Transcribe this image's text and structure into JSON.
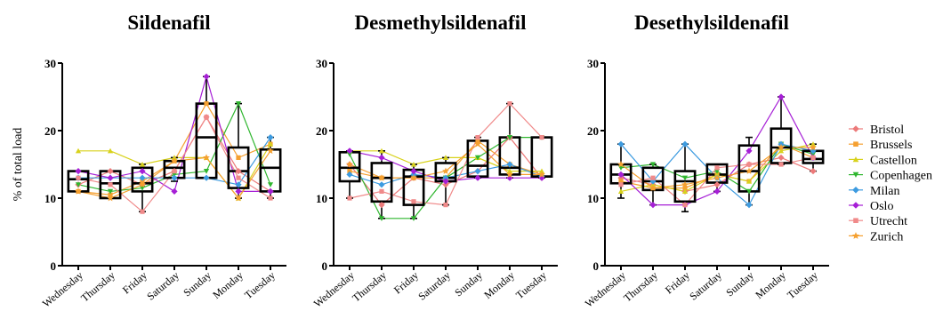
{
  "ylabel": "% of total load",
  "legend": [
    {
      "name": "Bristol",
      "color": "#ec7a7a",
      "marker": "diamond"
    },
    {
      "name": "Brussels",
      "color": "#f5a030",
      "marker": "square"
    },
    {
      "name": "Castellon",
      "color": "#d8d21c",
      "marker": "triangle"
    },
    {
      "name": "Copenhagen",
      "color": "#2fb62f",
      "marker": "triangle-down"
    },
    {
      "name": "Milan",
      "color": "#3d9be0",
      "marker": "diamond"
    },
    {
      "name": "Oslo",
      "color": "#a61fd6",
      "marker": "diamond"
    },
    {
      "name": "Utrecht",
      "color": "#f08a8a",
      "marker": "square"
    },
    {
      "name": "Zurich",
      "color": "#f5a030",
      "marker": "star"
    }
  ],
  "chart_data": [
    {
      "type": "box",
      "title": "Sildenafil",
      "categories": [
        "Wednesday",
        "Thursday",
        "Friday",
        "Saturday",
        "Sunday",
        "Monday",
        "Tuesday"
      ],
      "ylim": [
        0,
        30
      ],
      "yticks": [
        0,
        10,
        20,
        30
      ],
      "ylabel": "% of total load",
      "boxes": [
        {
          "min": 11,
          "q1": 11,
          "median": 12.8,
          "q3": 14,
          "max": 14
        },
        {
          "min": 10,
          "q1": 10,
          "median": 12.2,
          "q3": 14,
          "max": 14
        },
        {
          "min": 8,
          "q1": 11,
          "median": 12.2,
          "q3": 14.5,
          "max": 15
        },
        {
          "min": 12.5,
          "q1": 13,
          "median": 14.5,
          "q3": 15.5,
          "max": 16
        },
        {
          "min": 13,
          "q1": 13,
          "median": 19,
          "q3": 24,
          "max": 28
        },
        {
          "min": 10,
          "q1": 11.5,
          "median": 14,
          "q3": 17.5,
          "max": 24
        },
        {
          "min": 10,
          "q1": 11,
          "median": 14.5,
          "q3": 17.2,
          "max": 19
        }
      ],
      "series": [
        {
          "name": "Bristol",
          "values": [
            12,
            14,
            12,
            14,
            22,
            14,
            11
          ]
        },
        {
          "name": "Brussels",
          "values": [
            11,
            10.5,
            12.5,
            15.5,
            24,
            16,
            18
          ]
        },
        {
          "name": "Castellon",
          "values": [
            17,
            17,
            15,
            16,
            16,
            10,
            18
          ]
        },
        {
          "name": "Copenhagen",
          "values": [
            12,
            11,
            11.5,
            13.5,
            14,
            24,
            12
          ]
        },
        {
          "name": "Milan",
          "values": [
            13,
            13,
            13,
            13,
            13,
            12,
            19
          ]
        },
        {
          "name": "Oslo",
          "values": [
            14,
            13,
            14,
            11,
            28,
            11,
            11
          ]
        },
        {
          "name": "Utrecht",
          "values": [
            13,
            12,
            8,
            14,
            22,
            13,
            10
          ]
        },
        {
          "name": "Zurich",
          "values": [
            11,
            10,
            12,
            15.5,
            16,
            10,
            17
          ]
        }
      ]
    },
    {
      "type": "box",
      "title": "Desmethylsildenafil",
      "categories": [
        "Wednesday",
        "Thursday",
        "Friday",
        "Saturday",
        "Sunday",
        "Monday",
        "Tuesday"
      ],
      "ylim": [
        0,
        30
      ],
      "yticks": [
        0,
        10,
        20,
        30
      ],
      "boxes": [
        {
          "min": 10,
          "q1": 12.5,
          "median": 14.5,
          "q3": 16.8,
          "max": 17
        },
        {
          "min": 7,
          "q1": 9.5,
          "median": 13,
          "q3": 15.2,
          "max": 17
        },
        {
          "min": 7,
          "q1": 9,
          "median": 13.2,
          "q3": 14.2,
          "max": 15
        },
        {
          "min": 9,
          "q1": 12.5,
          "median": 13,
          "q3": 15.2,
          "max": 16
        },
        {
          "min": 13,
          "q1": 13.2,
          "median": 14.8,
          "q3": 18.5,
          "max": 19
        },
        {
          "min": 13,
          "q1": 13.5,
          "median": 14.5,
          "q3": 19,
          "max": 24
        },
        {
          "min": 13,
          "q1": 13.2,
          "median": 13.2,
          "q3": 19,
          "max": 19
        }
      ],
      "series": [
        {
          "name": "Bristol",
          "values": [
            15,
            9,
            13,
            12,
            14,
            19,
            13
          ]
        },
        {
          "name": "Brussels",
          "values": [
            14,
            13,
            13,
            13,
            18.5,
            15,
            13.5
          ]
        },
        {
          "name": "Castellon",
          "values": [
            17,
            17,
            15,
            16,
            16,
            14,
            14
          ]
        },
        {
          "name": "Copenhagen",
          "values": [
            16.5,
            7,
            7,
            13,
            16,
            19,
            19
          ]
        },
        {
          "name": "Milan",
          "values": [
            13.5,
            12,
            13.5,
            13,
            14,
            15,
            13.2
          ]
        },
        {
          "name": "Oslo",
          "values": [
            17,
            16,
            14,
            12.5,
            13,
            13,
            13
          ]
        },
        {
          "name": "Utrecht",
          "values": [
            10,
            11,
            9.5,
            9,
            19,
            24,
            19
          ]
        },
        {
          "name": "Zurich",
          "values": [
            15,
            13,
            13,
            14,
            18,
            13.5,
            13.5
          ]
        }
      ]
    },
    {
      "type": "box",
      "title": "Desethylsildenafil",
      "categories": [
        "Wednesday",
        "Thursday",
        "Friday",
        "Saturday",
        "Sunday",
        "Monday",
        "Tuesday"
      ],
      "ylim": [
        0,
        30
      ],
      "yticks": [
        0,
        10,
        20,
        30
      ],
      "boxes": [
        {
          "min": 10,
          "q1": 12.2,
          "median": 13.5,
          "q3": 15,
          "max": 18
        },
        {
          "min": 9,
          "q1": 11.2,
          "median": 12.5,
          "q3": 14.5,
          "max": 15
        },
        {
          "min": 8,
          "q1": 9.5,
          "median": 12.5,
          "q3": 14,
          "max": 18
        },
        {
          "min": 11,
          "q1": 12.3,
          "median": 13.5,
          "q3": 15,
          "max": 15
        },
        {
          "min": 9,
          "q1": 11,
          "median": 14,
          "q3": 17.8,
          "max": 19
        },
        {
          "min": 15,
          "q1": 15.2,
          "median": 17.5,
          "q3": 20.3,
          "max": 25
        },
        {
          "min": 14,
          "q1": 15.2,
          "median": 15.8,
          "q3": 17,
          "max": 18
        }
      ],
      "series": [
        {
          "name": "Bristol",
          "values": [
            13,
            12,
            11,
            12,
            15,
            16,
            14
          ]
        },
        {
          "name": "Brussels",
          "values": [
            12.5,
            11.5,
            11.5,
            13.5,
            12.5,
            18,
            16
          ]
        },
        {
          "name": "Castellon",
          "values": [
            11,
            12,
            11,
            13.5,
            12.5,
            17,
            18
          ]
        },
        {
          "name": "Copenhagen",
          "values": [
            14.5,
            15,
            13,
            14,
            11,
            18,
            16.5
          ]
        },
        {
          "name": "Milan",
          "values": [
            18,
            12.5,
            18,
            13,
            9,
            18,
            17
          ]
        },
        {
          "name": "Oslo",
          "values": [
            13.5,
            9,
            9,
            11,
            17,
            25,
            16
          ]
        },
        {
          "name": "Utrecht",
          "values": [
            12,
            13,
            9,
            14.5,
            15,
            15,
            16
          ]
        },
        {
          "name": "Zurich",
          "values": [
            15,
            11.5,
            12,
            13,
            14,
            17.5,
            17.5
          ]
        }
      ]
    }
  ]
}
